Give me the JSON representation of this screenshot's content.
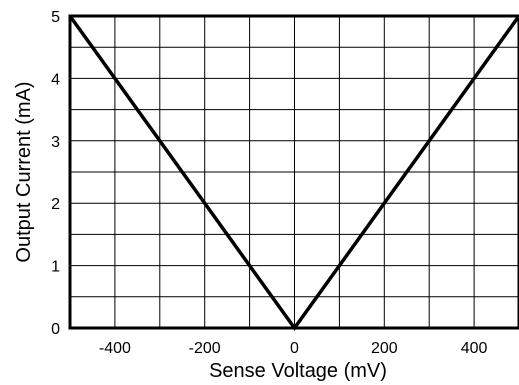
{
  "chart_data": {
    "type": "line",
    "title": "",
    "xlabel": "Sense Voltage (mV)",
    "ylabel": "Output Current (mA)",
    "xlim": [
      -500,
      500
    ],
    "ylim": [
      0,
      5
    ],
    "x_ticks": [
      -400,
      -200,
      0,
      200,
      400
    ],
    "y_ticks": [
      0,
      1,
      2,
      3,
      4,
      5
    ],
    "x_tick_labels": [
      "-400",
      "-200",
      "0",
      "200",
      "400"
    ],
    "y_tick_labels": [
      "0",
      "1",
      "2",
      "3",
      "4",
      "5"
    ],
    "grid": true,
    "x_grid_step": 100,
    "y_grid_step": 0.5,
    "legend": "none",
    "line_color": "#000000",
    "series": [
      {
        "x": [
          -500,
          0,
          500
        ],
        "y": [
          5,
          0,
          5
        ]
      }
    ]
  }
}
